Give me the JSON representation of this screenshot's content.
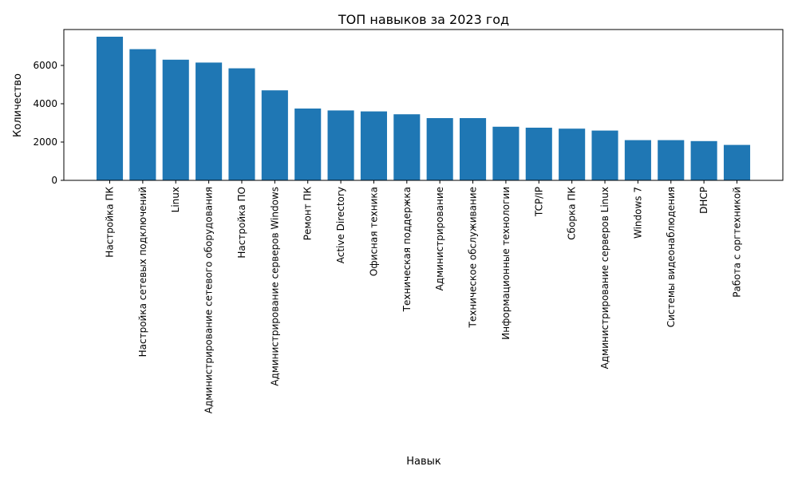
{
  "chart_data": {
    "type": "bar",
    "title": "ТОП навыков за 2023 год",
    "xlabel": "Навык",
    "ylabel": "Количество",
    "categories": [
      "Настройка ПК",
      "Настройка сетевых подключений",
      "Linux",
      "Администрирование сетевого оборудования",
      "Настройка ПО",
      "Администрирование серверов Windows",
      "Ремонт ПК",
      "Active Directory",
      "Офисная техника",
      "Техническая поддержка",
      "Администрирование",
      "Техническое обслуживание",
      "Информационные технологии",
      "TCP/IP",
      "Сборка ПК",
      "Администрирование серверов Linux",
      "Windows 7",
      "Системы видеонаблюдения",
      "DHCP",
      "Работа с оргтехникой"
    ],
    "values": [
      7500,
      6850,
      6300,
      6150,
      5850,
      4700,
      3750,
      3650,
      3600,
      3450,
      3250,
      3250,
      2800,
      2750,
      2700,
      2600,
      2100,
      2100,
      2050,
      1850
    ],
    "yticks": [
      0,
      2000,
      4000,
      6000
    ],
    "ylim": [
      0,
      7875
    ],
    "grid": false,
    "legend": "none",
    "bar_color": "#1f77b4"
  }
}
